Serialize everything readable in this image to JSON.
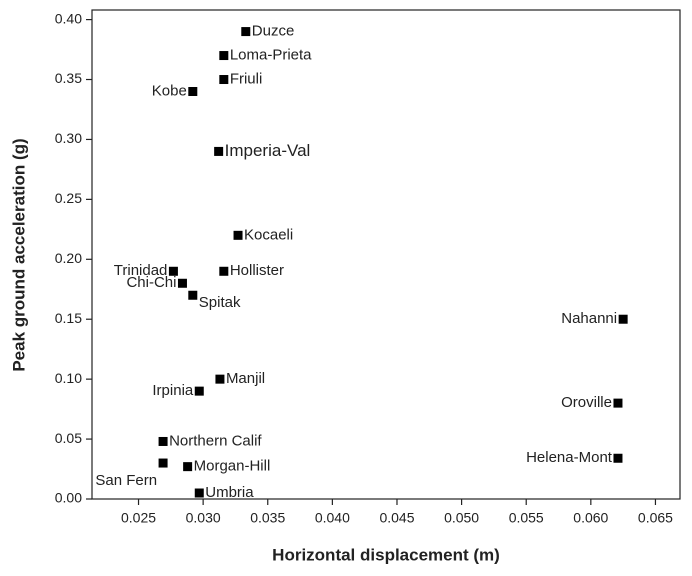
{
  "chart_data": {
    "type": "scatter",
    "x_label": "Horizontal displacement (m)",
    "y_label": "Peak ground acceleration (g)",
    "labels": [
      "Duzce",
      "Loma-Prieta",
      "Friuli",
      "Kobe",
      "Imperia-Val",
      "Kocaeli",
      "Trinidad",
      "Hollister",
      "Chi-Chi",
      "Spitak",
      "Nahanni",
      "Manjil",
      "Irpinia",
      "Oroville",
      "Northern Calif",
      "San Fern",
      "Morgan-Hill",
      "Helena-Mont",
      "Umbria"
    ],
    "x": [
      0.0333,
      0.0316,
      0.0316,
      0.0292,
      0.0312,
      0.0327,
      0.0277,
      0.0316,
      0.0284,
      0.0292,
      0.0625,
      0.0313,
      0.0297,
      0.0621,
      0.0269,
      0.0269,
      0.0288,
      0.0621,
      0.0297
    ],
    "y": [
      0.39,
      0.37,
      0.35,
      0.34,
      0.29,
      0.22,
      0.19,
      0.19,
      0.18,
      0.17,
      0.15,
      0.1,
      0.09,
      0.08,
      0.048,
      0.03,
      0.027,
      0.034,
      0.005
    ],
    "color": "#000000",
    "xlim": [
      0.0214,
      0.0669
    ],
    "xticks": [
      0.025,
      {
        "value": 0.03,
        "label": "0.030"
      },
      0.035,
      {
        "value": 0.04,
        "label": "0.040"
      },
      0.045,
      {
        "value": 0.05,
        "label": "0.050"
      },
      0.055,
      {
        "value": 0.06,
        "label": "0.060"
      },
      0.065
    ],
    "ylim": [
      0,
      0.408
    ],
    "yticks": [
      {
        "value": 0,
        "label": "0.00"
      },
      0.05,
      {
        "value": 0.1,
        "label": "0.10"
      },
      0.15,
      {
        "value": 0.2,
        "label": "0.20"
      },
      0.25,
      {
        "value": 0.3,
        "label": "0.30"
      },
      0.35,
      {
        "value": 0.4,
        "label": "0.40"
      }
    ]
  }
}
